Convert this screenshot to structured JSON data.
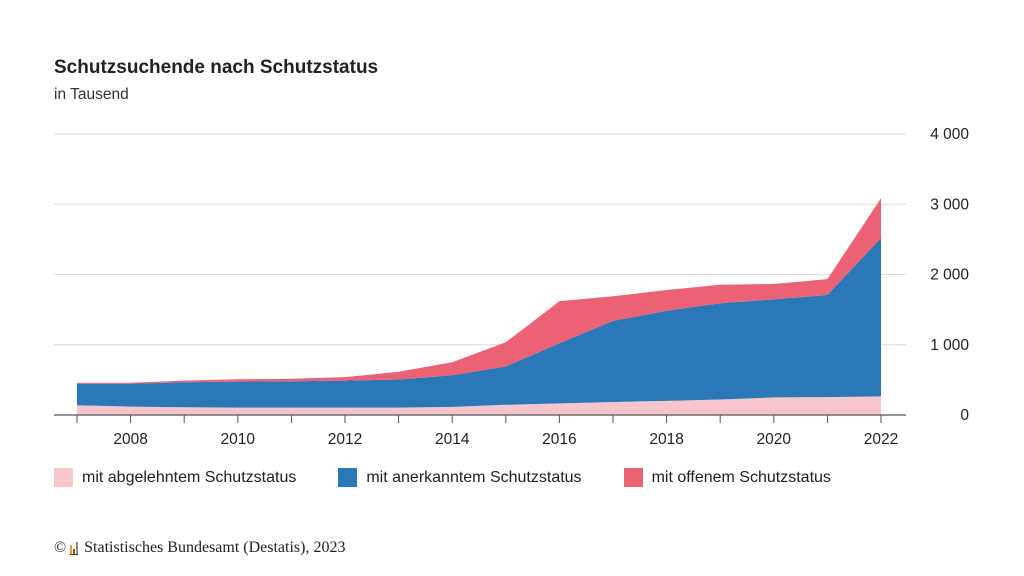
{
  "chart_data": {
    "type": "area",
    "stacked": true,
    "title": "Schutzsuchende nach Schutzstatus",
    "subtitle": "in Tausend",
    "x": [
      2007,
      2008,
      2009,
      2010,
      2011,
      2012,
      2013,
      2014,
      2015,
      2016,
      2017,
      2018,
      2019,
      2020,
      2021,
      2022
    ],
    "x_ticks": [
      "2008",
      "2010",
      "2012",
      "2014",
      "2016",
      "2018",
      "2020",
      "2022"
    ],
    "y_ticks": [
      "0",
      "1 000",
      "2 000",
      "3 000",
      "4 000"
    ],
    "ylim": [
      0,
      4000
    ],
    "y_axis_position": "right",
    "grid": true,
    "legend_position": "bottom",
    "series": [
      {
        "name": "mit abgelehntem Schutzstatus",
        "color": "#f7c5cc",
        "values": [
          140,
          120,
          110,
          105,
          105,
          105,
          105,
          115,
          145,
          165,
          185,
          200,
          220,
          250,
          255,
          265
        ]
      },
      {
        "name": "mit anerkanntem Schutzstatus",
        "color": "#2a78b8",
        "values": [
          305,
          325,
          355,
          370,
          375,
          385,
          400,
          450,
          545,
          855,
          1155,
          1285,
          1370,
          1395,
          1455,
          2255
        ]
      },
      {
        "name": "mit offenem Schutzstatus",
        "color": "#ec6275",
        "values": [
          15,
          15,
          25,
          35,
          35,
          50,
          110,
          185,
          345,
          600,
          350,
          295,
          265,
          220,
          225,
          565
        ]
      }
    ]
  },
  "footer": {
    "text": "© Statistisches Bundesamt (Destatis), 2023",
    "copyright": "©",
    "source": "Statistisches Bundesamt (Destatis), 2023",
    "logo_colors": [
      "#e3a21a",
      "#c0392b",
      "#8e8e8e"
    ]
  }
}
